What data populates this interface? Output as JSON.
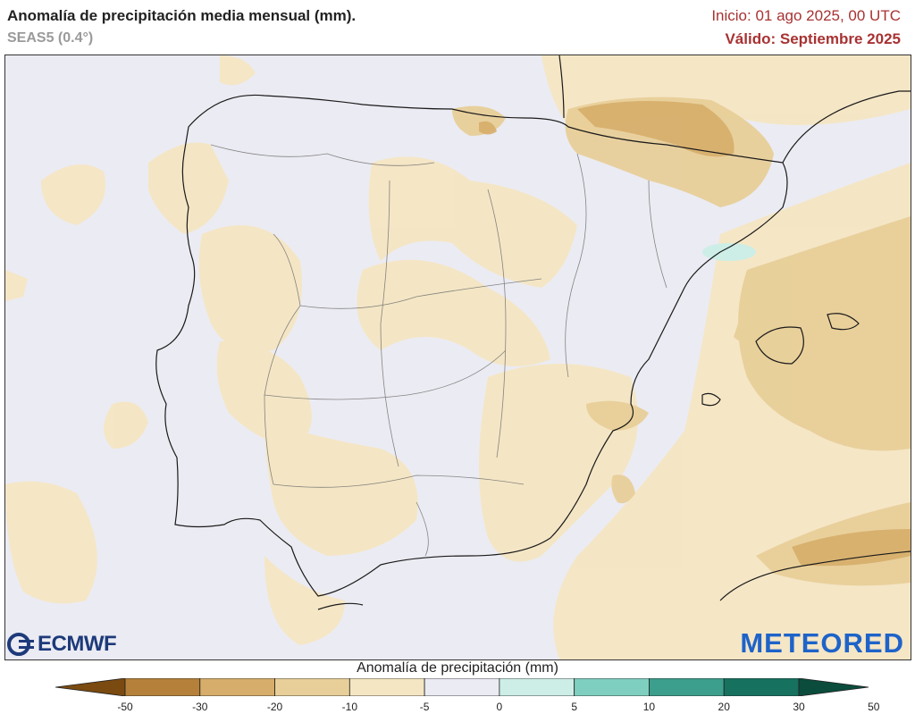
{
  "header": {
    "title": "Anomalía de precipitación media mensual (mm).",
    "model": "SEAS5 (0.4°)",
    "init": "Inicio: 01 ago 2025, 00 UTC",
    "valid": "Válido: Septiembre 2025"
  },
  "logos": {
    "left": "ECMWF",
    "right": "METEORED"
  },
  "legend": {
    "title": "Anomalía de precipitación (mm)",
    "ticks": [
      "-50",
      "-30",
      "-20",
      "-10",
      "-5",
      "0",
      "5",
      "10",
      "20",
      "30",
      "50"
    ],
    "colors": [
      "#7a4a10",
      "#b5813a",
      "#d6ad6a",
      "#e8cf99",
      "#f5e6c3",
      "#ebebf3",
      "#cdeee6",
      "#7fcfc0",
      "#3c9e8c",
      "#16715f",
      "#0b4c3c"
    ]
  },
  "map": {
    "land_color": "#ebebf3",
    "sea_color": "#ebebf3",
    "dry_light": "#f5e6c3",
    "dry_medium": "#e8cf99",
    "dry_strong": "#d6ad6a",
    "wet_light": "#cdeee6"
  }
}
